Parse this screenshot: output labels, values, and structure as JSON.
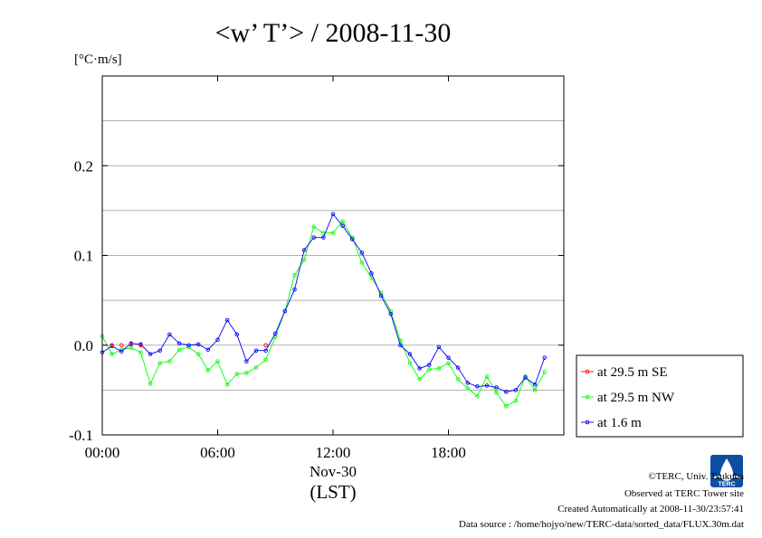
{
  "title": "<w’ T’> / 2008-11-30",
  "unit_label": "[°C·m/s]",
  "x_sub_label": "Nov-30",
  "x_unit_label": "(LST)",
  "footer": [
    "©TERC, Univ. Tsukuba",
    "Observed at TERC Tower site",
    "Created Automatically at 2008-11-30/23:57:41",
    "Data source : /home/hojyo/new/TERC-data/sorted_data/FLUX.30m.dat"
  ],
  "logo_text": "TERC",
  "chart_data": {
    "type": "line",
    "title": "<w’ T’> / 2008-11-30",
    "ylabel": "[°C·m/s]",
    "xlabel": "Nov-30 (LST)",
    "xlim": [
      0,
      24
    ],
    "ylim": [
      -0.1,
      0.3
    ],
    "x_ticks": [
      0,
      6,
      12,
      18
    ],
    "x_tick_labels": [
      "00:00",
      "06:00",
      "12:00",
      "18:00"
    ],
    "y_ticks": [
      -0.1,
      0.0,
      0.1,
      0.2
    ],
    "y_tick_labels": [
      "-0.1",
      "0.0",
      "0.1",
      "0.2"
    ],
    "grid": true,
    "legend_position": "bottom-right, outside plot",
    "series": [
      {
        "name": "at 29.5 m SE",
        "color": "#ff0000",
        "x": [
          0.5,
          1.0,
          1.5,
          2.0,
          8.5
        ],
        "values": [
          0.0,
          0.0,
          0.001,
          0.0,
          0.0
        ]
      },
      {
        "name": "at 29.5 m NW",
        "color": "#00ff00",
        "x": [
          0.0,
          0.5,
          1.0,
          1.5,
          2.0,
          2.5,
          3.0,
          3.5,
          4.0,
          4.5,
          5.0,
          5.5,
          6.0,
          6.5,
          7.0,
          7.5,
          8.0,
          8.5,
          9.0,
          9.5,
          10.0,
          10.5,
          11.0,
          11.5,
          12.0,
          12.5,
          13.0,
          13.5,
          14.0,
          14.5,
          15.0,
          15.5,
          16.0,
          16.5,
          17.0,
          17.5,
          18.0,
          18.5,
          19.0,
          19.5,
          20.0,
          20.5,
          21.0,
          21.5,
          22.0,
          22.5,
          23.0
        ],
        "values": [
          0.01,
          -0.01,
          -0.005,
          -0.003,
          -0.008,
          -0.043,
          -0.02,
          -0.018,
          -0.005,
          -0.002,
          -0.01,
          -0.028,
          -0.018,
          -0.044,
          -0.032,
          -0.031,
          -0.025,
          -0.016,
          0.009,
          0.038,
          0.078,
          0.095,
          0.132,
          0.125,
          0.125,
          0.138,
          0.12,
          0.092,
          0.075,
          0.058,
          0.038,
          0.005,
          -0.02,
          -0.038,
          -0.027,
          -0.026,
          -0.02,
          -0.038,
          -0.048,
          -0.057,
          -0.035,
          -0.053,
          -0.068,
          -0.062,
          -0.035,
          -0.05,
          -0.03
        ]
      },
      {
        "name": "at 1.6 m",
        "color": "#0000ff",
        "x": [
          0.0,
          0.5,
          1.0,
          1.5,
          2.0,
          2.5,
          3.0,
          3.5,
          4.0,
          4.5,
          5.0,
          5.5,
          6.0,
          6.5,
          7.0,
          7.5,
          8.0,
          8.5,
          9.0,
          9.5,
          10.0,
          10.5,
          11.0,
          11.5,
          12.0,
          12.5,
          13.0,
          13.5,
          14.0,
          14.5,
          15.0,
          15.5,
          16.0,
          16.5,
          17.0,
          17.5,
          18.0,
          18.5,
          19.0,
          19.5,
          20.0,
          20.5,
          21.0,
          21.5,
          22.0,
          22.5,
          23.0
        ],
        "values": [
          -0.008,
          -0.001,
          -0.007,
          0.002,
          0.001,
          -0.01,
          -0.006,
          0.012,
          0.002,
          0.0,
          0.001,
          -0.005,
          0.006,
          0.028,
          0.012,
          -0.018,
          -0.006,
          -0.006,
          0.013,
          0.038,
          0.062,
          0.106,
          0.12,
          0.12,
          0.146,
          0.133,
          0.118,
          0.103,
          0.08,
          0.055,
          0.035,
          0.0,
          -0.01,
          -0.026,
          -0.022,
          -0.002,
          -0.014,
          -0.025,
          -0.042,
          -0.046,
          -0.045,
          -0.047,
          -0.052,
          -0.05,
          -0.036,
          -0.044,
          -0.014
        ]
      }
    ]
  }
}
